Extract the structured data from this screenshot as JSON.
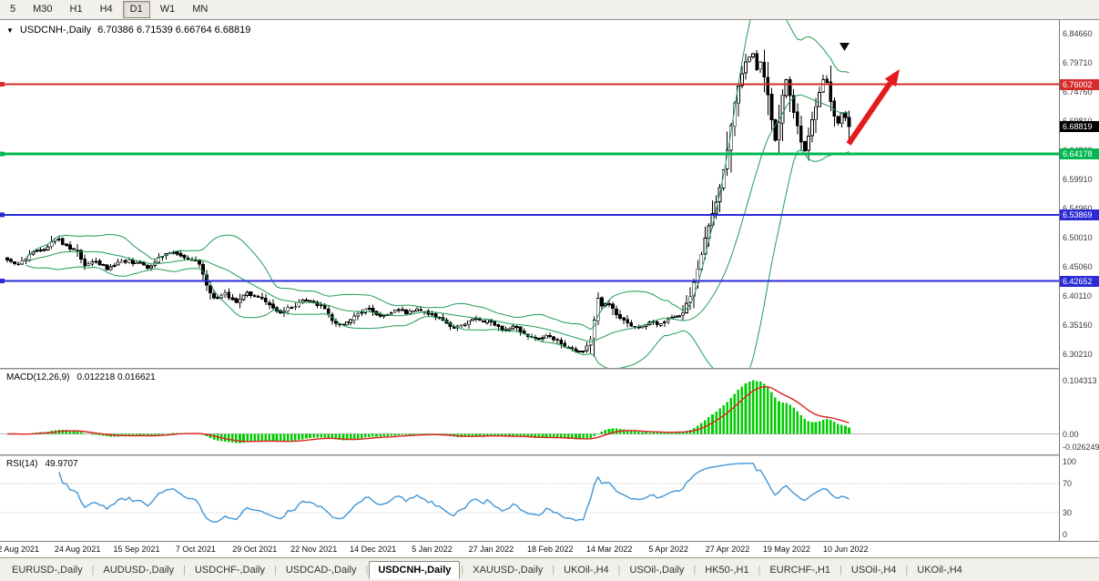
{
  "toolbar": {
    "buttons": [
      {
        "label": "5",
        "active": false
      },
      {
        "label": "M30",
        "active": false
      },
      {
        "label": "H1",
        "active": false
      },
      {
        "label": "H4",
        "active": false
      },
      {
        "label": "D1",
        "active": true
      },
      {
        "label": "W1",
        "active": false
      },
      {
        "label": "MN",
        "active": false
      }
    ]
  },
  "chart_data": {
    "type": "candlestick",
    "symbol": "USDCNH-",
    "timeframe": "Daily",
    "chart_title": {
      "symbol": "USDCNH-,Daily",
      "ohlc": "6.70386 6.71539 6.66764 6.68819"
    },
    "current_bar": {
      "open": 6.70386,
      "high": 6.71539,
      "low": 6.66764,
      "close": 6.68819
    },
    "bars_total": 229,
    "close_keyframes": [
      [
        0,
        6.462
      ],
      [
        3,
        6.455
      ],
      [
        6,
        6.471
      ],
      [
        10,
        6.48
      ],
      [
        13,
        6.498
      ],
      [
        16,
        6.487
      ],
      [
        19,
        6.477
      ],
      [
        21,
        6.452
      ],
      [
        24,
        6.459
      ],
      [
        27,
        6.446
      ],
      [
        31,
        6.461
      ],
      [
        35,
        6.457
      ],
      [
        38,
        6.448
      ],
      [
        41,
        6.467
      ],
      [
        44,
        6.474
      ],
      [
        47,
        6.469
      ],
      [
        50,
        6.463
      ],
      [
        52,
        6.455
      ],
      [
        54,
        6.419
      ],
      [
        56,
        6.398
      ],
      [
        59,
        6.406
      ],
      [
        62,
        6.39
      ],
      [
        65,
        6.407
      ],
      [
        68,
        6.399
      ],
      [
        71,
        6.386
      ],
      [
        74,
        6.372
      ],
      [
        77,
        6.381
      ],
      [
        80,
        6.394
      ],
      [
        83,
        6.39
      ],
      [
        86,
        6.379
      ],
      [
        88,
        6.359
      ],
      [
        91,
        6.353
      ],
      [
        94,
        6.367
      ],
      [
        97,
        6.379
      ],
      [
        99,
        6.374
      ],
      [
        102,
        6.368
      ],
      [
        105,
        6.377
      ],
      [
        108,
        6.371
      ],
      [
        111,
        6.379
      ],
      [
        115,
        6.371
      ],
      [
        118,
        6.36
      ],
      [
        121,
        6.346
      ],
      [
        124,
        6.353
      ],
      [
        127,
        6.363
      ],
      [
        131,
        6.357
      ],
      [
        134,
        6.343
      ],
      [
        137,
        6.35
      ],
      [
        140,
        6.337
      ],
      [
        143,
        6.33
      ],
      [
        147,
        6.332
      ],
      [
        150,
        6.32
      ],
      [
        153,
        6.312
      ],
      [
        156,
        6.307
      ],
      [
        158,
        6.328
      ],
      [
        160,
        6.397
      ],
      [
        161,
        6.384
      ],
      [
        163,
        6.388
      ],
      [
        165,
        6.369
      ],
      [
        168,
        6.355
      ],
      [
        171,
        6.348
      ],
      [
        174,
        6.357
      ],
      [
        177,
        6.354
      ],
      [
        179,
        6.361
      ],
      [
        181,
        6.367
      ],
      [
        183,
        6.372
      ],
      [
        185,
        6.4
      ],
      [
        186,
        6.424
      ],
      [
        187,
        6.447
      ],
      [
        188,
        6.471
      ],
      [
        189,
        6.499
      ],
      [
        190,
        6.52
      ],
      [
        191,
        6.541
      ],
      [
        192,
        6.56
      ],
      [
        193,
        6.585
      ],
      [
        194,
        6.615
      ],
      [
        195,
        6.648
      ],
      [
        196,
        6.69
      ],
      [
        197,
        6.728
      ],
      [
        198,
        6.757
      ],
      [
        199,
        6.778
      ],
      [
        200,
        6.798
      ],
      [
        201,
        6.806
      ],
      [
        202,
        6.812
      ],
      [
        203,
        6.785
      ],
      [
        204,
        6.798
      ],
      [
        205,
        6.772
      ],
      [
        206,
        6.742
      ],
      [
        207,
        6.7
      ],
      [
        208,
        6.665
      ],
      [
        209,
        6.695
      ],
      [
        210,
        6.742
      ],
      [
        211,
        6.768
      ],
      [
        212,
        6.741
      ],
      [
        213,
        6.712
      ],
      [
        214,
        6.69
      ],
      [
        215,
        6.662
      ],
      [
        216,
        6.647
      ],
      [
        217,
        6.672
      ],
      [
        218,
        6.7
      ],
      [
        219,
        6.722
      ],
      [
        220,
        6.746
      ],
      [
        221,
        6.768
      ],
      [
        222,
        6.763
      ],
      [
        223,
        6.731
      ],
      [
        224,
        6.706
      ],
      [
        225,
        6.694
      ],
      [
        226,
        6.711
      ],
      [
        227,
        6.704
      ],
      [
        228,
        6.68819
      ]
    ],
    "price_axis": {
      "tick_labels": [
        "6.84660",
        "6.79710",
        "6.74760",
        "6.69810",
        "6.64860",
        "6.59910",
        "6.54960",
        "6.50010",
        "6.45060",
        "6.40110",
        "6.35160",
        "6.30210"
      ],
      "min": 6.279,
      "max": 6.869
    },
    "x_labels": [
      "2 Aug 2021",
      "24 Aug 2021",
      "15 Sep 2021",
      "7 Oct 2021",
      "29 Oct 2021",
      "22 Nov 2021",
      "14 Dec 2021",
      "5 Jan 2022",
      "27 Jan 2022",
      "18 Feb 2022",
      "14 Mar 2022",
      "5 Apr 2022",
      "27 Apr 2022",
      "19 May 2022",
      "10 Jun 2022"
    ],
    "hlines": [
      {
        "label": "6.76002",
        "value": 6.76002,
        "color": "#d62b2b",
        "width": 2
      },
      {
        "label": "6.64178",
        "value": 6.64178,
        "color": "#00b84f",
        "width": 3
      },
      {
        "label": "6.53869",
        "value": 6.53869,
        "color": "#2b2bd6",
        "width": 2
      },
      {
        "label": "6.42652",
        "value": 6.42652,
        "color": "#2b2bd6",
        "width": 2
      }
    ],
    "current_price": {
      "label": "6.68819",
      "value": 6.68819,
      "color": "#000000"
    },
    "candles": {
      "bull_fill": "#ffffff",
      "bear_fill": "#000000",
      "outline": "#000000"
    },
    "bollinger": {
      "period": 20,
      "deviation": 2,
      "color": "#1f9d55"
    },
    "macd": {
      "name": "MACD(12,26,9)",
      "values": "0.012218 0.016621",
      "fast": 12,
      "slow": 26,
      "signal": 9,
      "axis_labels": [
        "0.104313",
        "0.00",
        "-0.026249"
      ],
      "peak": 0.104313,
      "hist_color": "#00cc00",
      "signal_color": "#e02020"
    },
    "rsi": {
      "name": "RSI(14)",
      "value": "49.9707",
      "period": 14,
      "axis_labels": [
        "100",
        "70",
        "30",
        "0"
      ],
      "levels": [
        70,
        30
      ],
      "color": "#4196d8"
    },
    "annotations": {
      "trend_arrow": {
        "color": "#e31b1b"
      },
      "down_marker": {
        "glyph": "▼",
        "color": "#0a0a0a"
      }
    }
  },
  "tabs": [
    {
      "label": "EURUSD-,Daily",
      "active": false
    },
    {
      "label": "AUDUSD-,Daily",
      "active": false
    },
    {
      "label": "USDCHF-,Daily",
      "active": false
    },
    {
      "label": "USDCAD-,Daily",
      "active": false
    },
    {
      "label": "USDCNH-,Daily",
      "active": true
    },
    {
      "label": "XAUUSD-,Daily",
      "active": false
    },
    {
      "label": "UKOil-,H4",
      "active": false
    },
    {
      "label": "USOil-,Daily",
      "active": false
    },
    {
      "label": "HK50-,H1",
      "active": false
    },
    {
      "label": "EURCHF-,H1",
      "active": false
    },
    {
      "label": "USOil-,H4",
      "active": false
    },
    {
      "label": "UKOil-,H4",
      "active": false
    }
  ]
}
